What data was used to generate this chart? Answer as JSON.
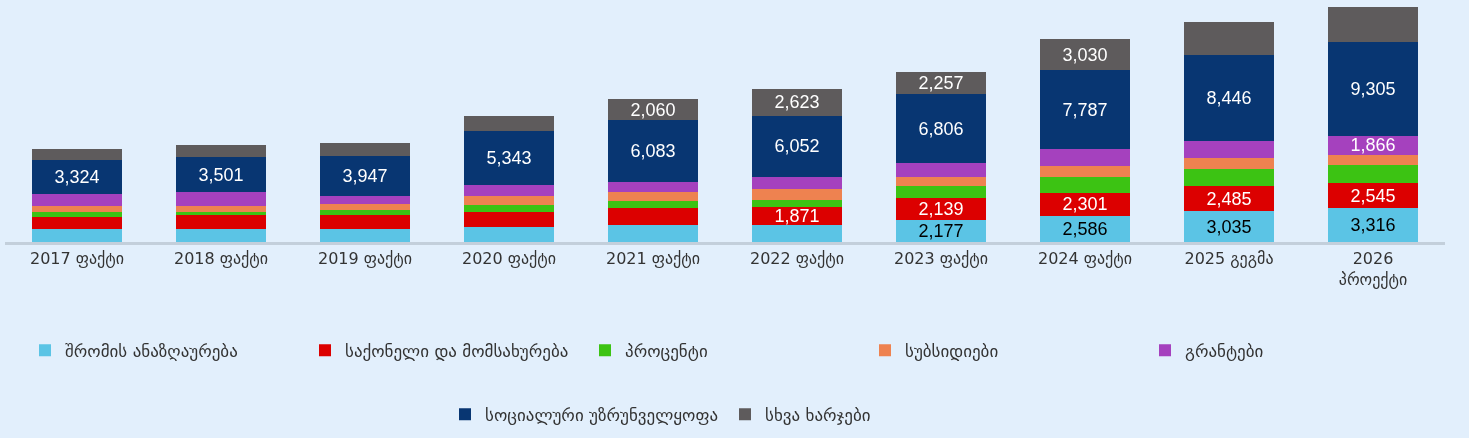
{
  "chart_data": {
    "type": "bar",
    "stacked": true,
    "legend": "bottom",
    "categories": [
      "2017 ფაქტი",
      "2018 ფაქტი",
      "2019 ფაქტი",
      "2020 ფაქტი",
      "2021 ფაქტი",
      "2022 ფაქტი",
      "2023 ფაქტი",
      "2024 ფაქტი",
      "2025 გეგმა",
      "2026\nპროექტი"
    ],
    "series": [
      {
        "name": "შრომის ანაზღაურება",
        "color": "#5bc4e5",
        "values": [
          1290,
          1290,
          1290,
          1460,
          1630,
          1630,
          2177,
          2586,
          3035,
          3316
        ],
        "value_labels": [
          null,
          null,
          null,
          null,
          null,
          null,
          "2,177",
          "2,586",
          "3,035",
          "3,316"
        ]
      },
      {
        "name": "საქონელი და მომსახურება",
        "color": "#dc0000",
        "values": [
          1200,
          1380,
          1380,
          1550,
          1720,
          1871,
          2139,
          2301,
          2485,
          2545
        ],
        "value_labels": [
          null,
          null,
          null,
          null,
          null,
          "1,871",
          "2,139",
          "2,301",
          "2,485",
          "2,545"
        ]
      },
      {
        "name": "პროცენტი",
        "color": "#3cc313",
        "values": [
          520,
          340,
          520,
          690,
          690,
          690,
          1200,
          1550,
          1720,
          1720
        ]
      },
      {
        "name": "სუბსიდიები",
        "color": "#ee8250",
        "values": [
          520,
          520,
          520,
          860,
          860,
          1030,
          860,
          1030,
          1030,
          1030
        ]
      },
      {
        "name": "გრანტები",
        "color": "#a541be",
        "values": [
          1200,
          1380,
          860,
          1030,
          1030,
          1200,
          1380,
          1720,
          1720,
          1866
        ],
        "value_labels": [
          null,
          null,
          null,
          null,
          null,
          null,
          null,
          null,
          null,
          "1,866"
        ]
      },
      {
        "name": "სოციალური უზრუნველყოფა",
        "color": "#083672",
        "values": [
          3324,
          3501,
          3947,
          5343,
          6083,
          6052,
          6806,
          7787,
          8446,
          9305
        ],
        "value_labels": [
          "3,324",
          "3,501",
          "3,947",
          "5,343",
          "6,083",
          "6,052",
          "6,806",
          "7,787",
          "8,446",
          "9,305"
        ]
      },
      {
        "name": "სხვა ხარჯები",
        "color": "#5e5b5c",
        "values": [
          1120,
          1120,
          1290,
          1460,
          2060,
          2623,
          2257,
          3030,
          3250,
          3400
        ],
        "value_labels": [
          null,
          null,
          null,
          null,
          "2,060",
          "2,623",
          "2,257",
          "3,030",
          null,
          null
        ]
      }
    ]
  }
}
